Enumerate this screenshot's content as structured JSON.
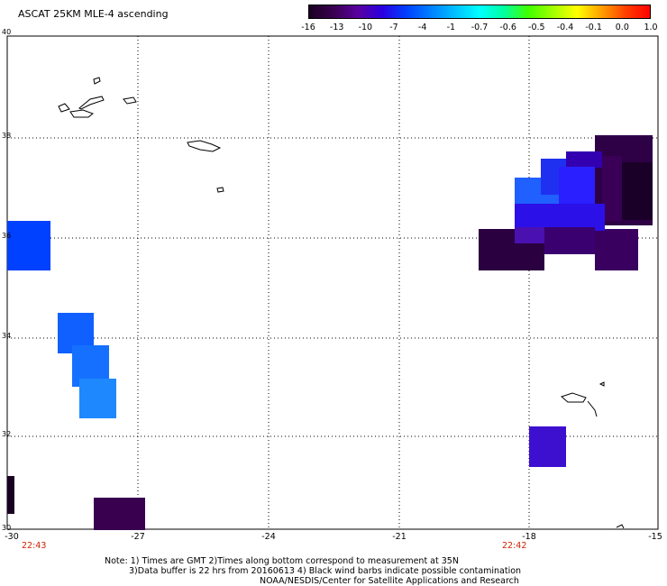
{
  "title": "ASCAT 25KM MLE-4 ascending",
  "colorbar": {
    "colors": [
      "#1a0022",
      "#3a0050",
      "#5a00a0",
      "#2a00e0",
      "#0040ff",
      "#0080ff",
      "#00c0ff",
      "#00ffff",
      "#00ffa0",
      "#40ff00",
      "#a0ff00",
      "#ffff00",
      "#ffa000",
      "#ff4000",
      "#ff0000"
    ],
    "labels": [
      "-16",
      "-13",
      "-10",
      "-7",
      "-4",
      "-1",
      "-0.7",
      "-0.6",
      "-0.5",
      "-0.4",
      "-0.1",
      "0.0",
      "1.0"
    ]
  },
  "lat_labels": [
    "40",
    "38",
    "36",
    "34",
    "32",
    "30"
  ],
  "lon_labels": [
    "-30",
    "-27",
    "-24",
    "-21",
    "-18",
    "-15"
  ],
  "times": [
    "22:43",
    "22:42"
  ],
  "notes": {
    "line1": "Note: 1) Times are GMT 2)Times along bottom correspond to measurement at 35N",
    "line2": "3)Data buffer is 22 hrs from 20160613 4) Black wind barbs indicate possible contamination",
    "line3": "NOAA/NESDIS/Center for Satellite Applications and Research"
  }
}
